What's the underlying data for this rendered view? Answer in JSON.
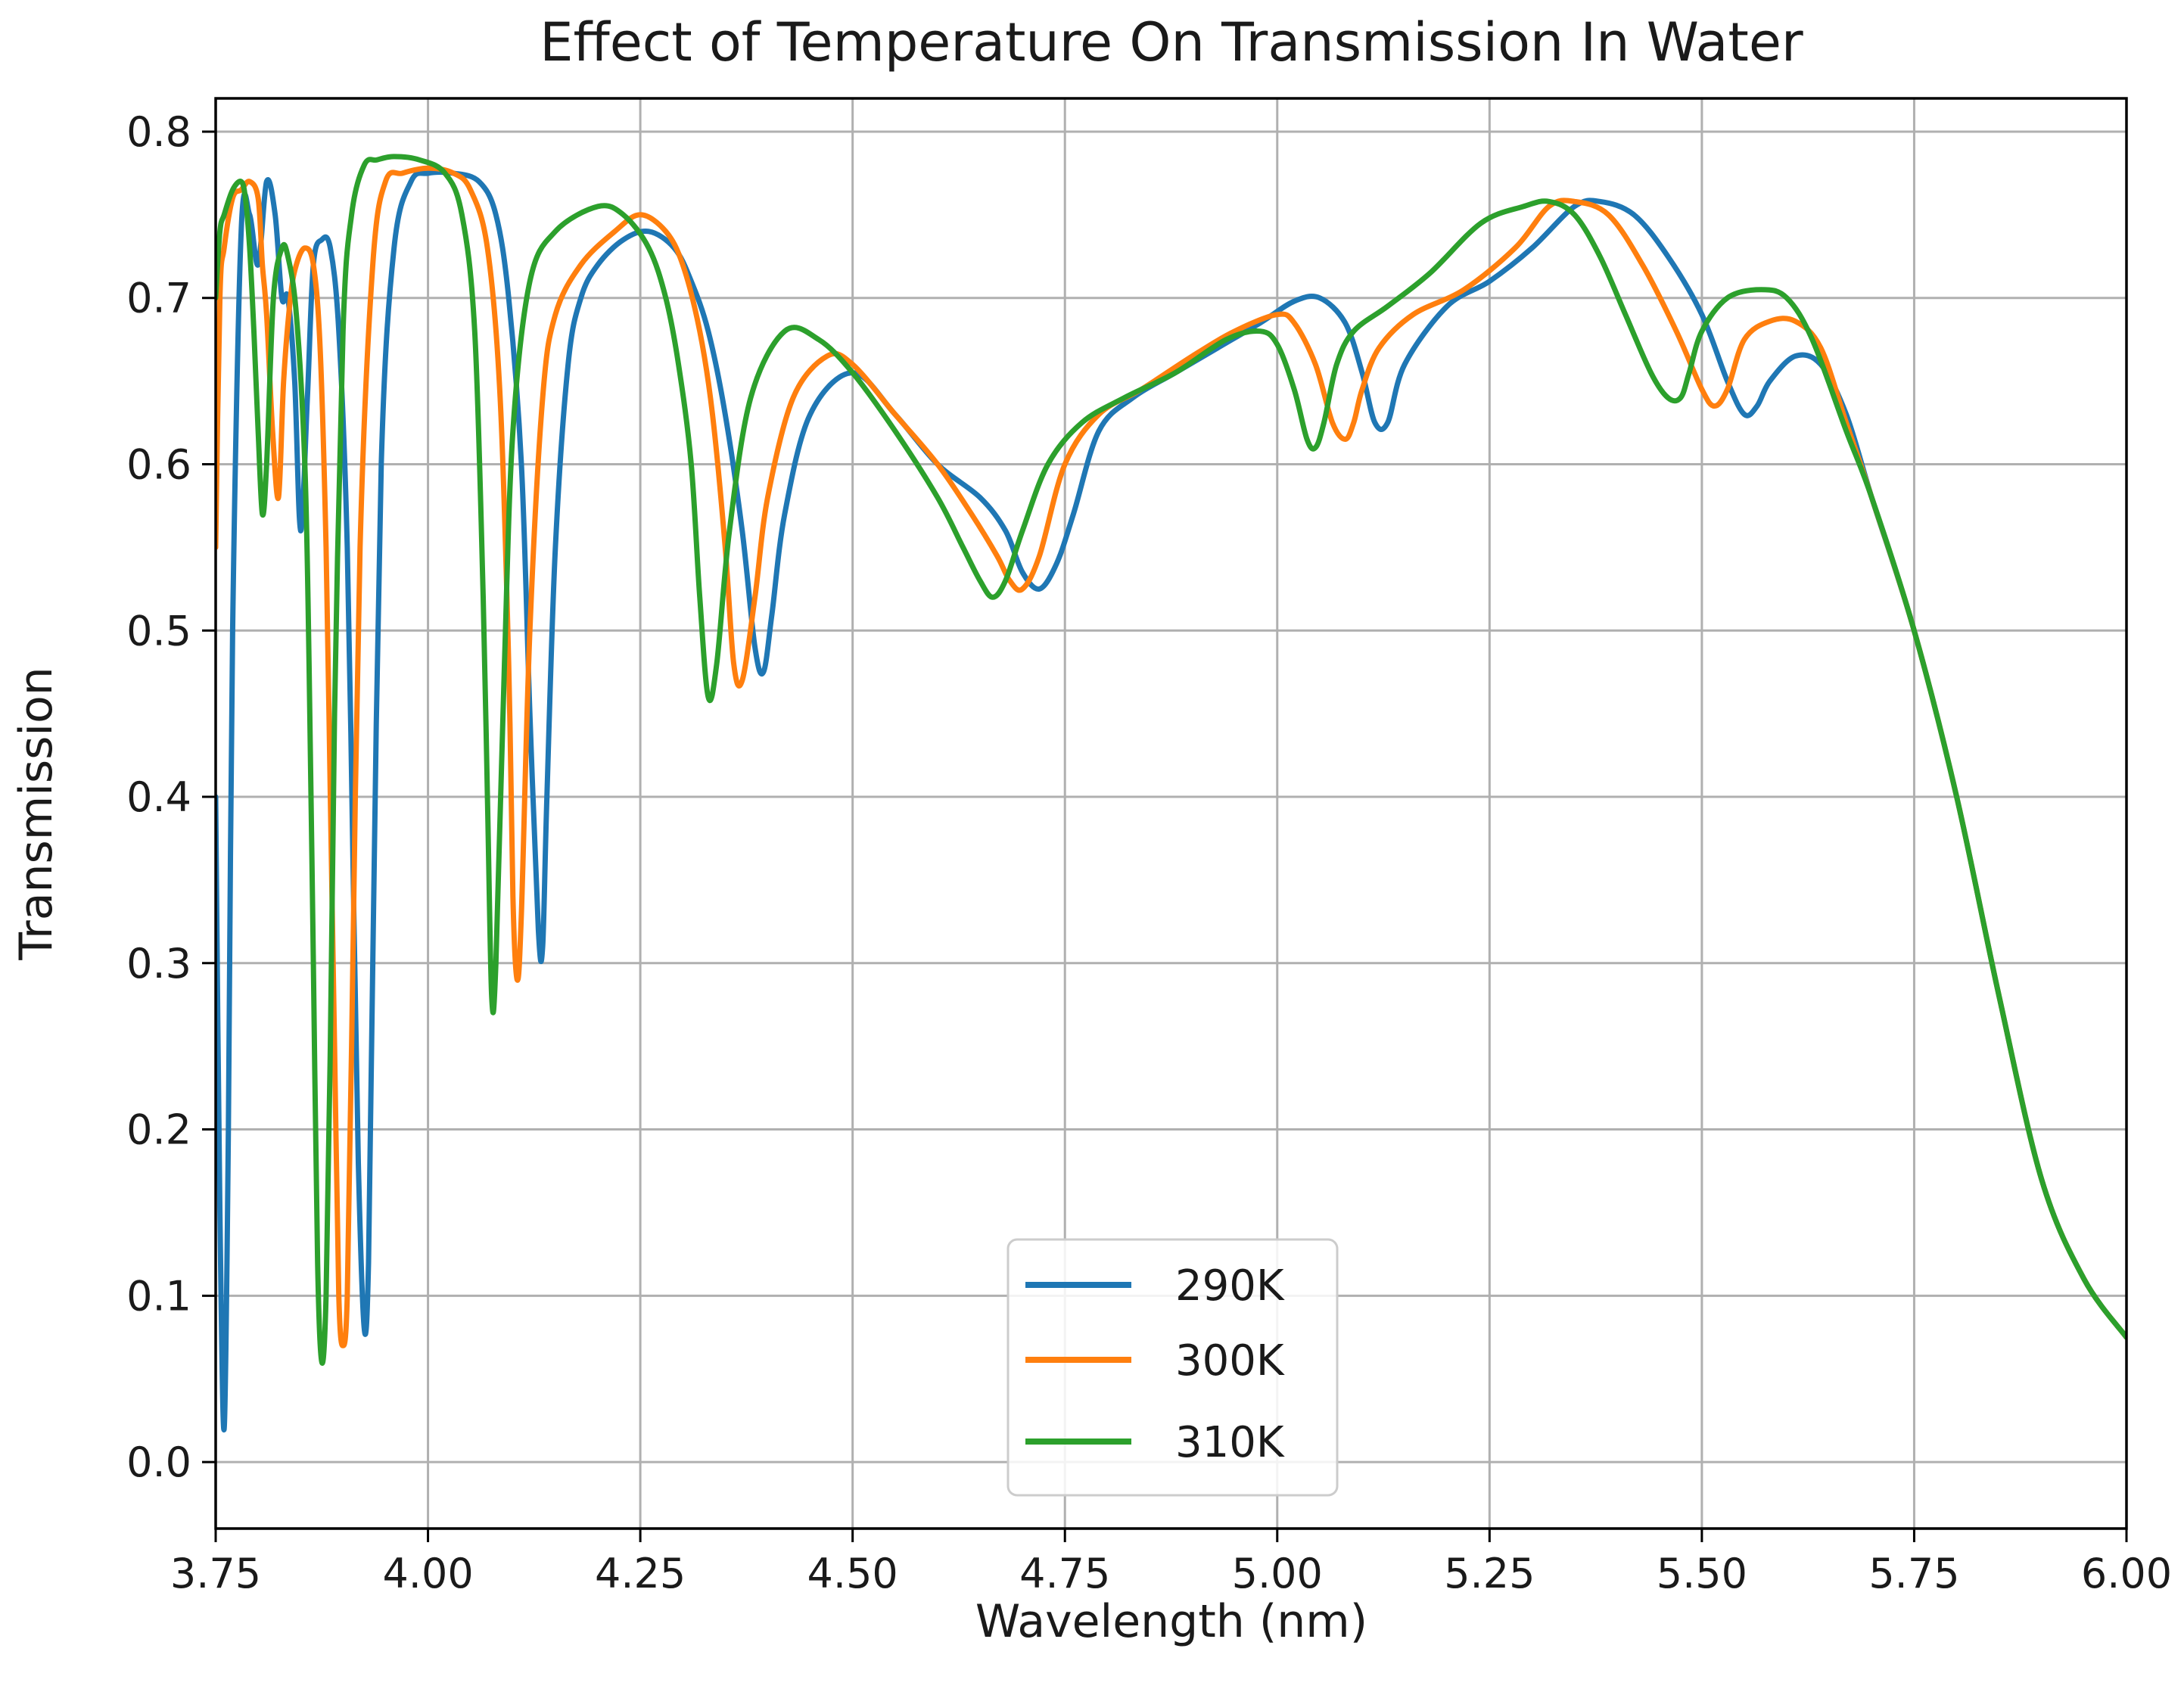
{
  "chart_data": {
    "type": "line",
    "title": "Effect of Temperature On Transmission In Water",
    "xlabel": "Wavelength (nm)",
    "ylabel": "Transmission",
    "xlim": [
      3.75,
      6.0
    ],
    "ylim": [
      -0.04,
      0.82
    ],
    "xticks": [
      3.75,
      4.0,
      4.25,
      4.5,
      4.75,
      5.0,
      5.25,
      5.5,
      5.75,
      6.0
    ],
    "xtick_labels": [
      "3.75",
      "4.00",
      "4.25",
      "4.50",
      "4.75",
      "5.00",
      "5.25",
      "5.50",
      "5.75",
      "6.00"
    ],
    "yticks": [
      0.0,
      0.1,
      0.2,
      0.3,
      0.4,
      0.5,
      0.6,
      0.7,
      0.8
    ],
    "ytick_labels": [
      "0.0",
      "0.1",
      "0.2",
      "0.3",
      "0.4",
      "0.5",
      "0.6",
      "0.7",
      "0.8"
    ],
    "grid": true,
    "legend_position": "bottom-center",
    "series": [
      {
        "name": "290K",
        "color": "#1f77b4",
        "x": [
          3.75,
          3.755,
          3.76,
          3.765,
          3.77,
          3.78,
          3.79,
          3.8,
          3.81,
          3.82,
          3.828,
          3.835,
          3.843,
          3.85,
          3.858,
          3.865,
          3.875,
          3.885,
          3.895,
          3.905,
          3.912,
          3.918,
          3.925,
          3.93,
          3.935,
          3.945,
          3.96,
          3.98,
          4.0,
          4.03,
          4.06,
          4.08,
          4.095,
          4.11,
          4.12,
          4.13,
          4.135,
          4.14,
          4.15,
          4.165,
          4.18,
          4.2,
          4.23,
          4.26,
          4.29,
          4.31,
          4.33,
          4.35,
          4.37,
          4.385,
          4.395,
          4.405,
          4.42,
          4.45,
          4.5,
          4.55,
          4.6,
          4.65,
          4.68,
          4.7,
          4.72,
          4.74,
          4.76,
          4.79,
          4.83,
          4.88,
          4.93,
          4.98,
          5.02,
          5.05,
          5.08,
          5.1,
          5.115,
          5.13,
          5.15,
          5.2,
          5.25,
          5.3,
          5.35,
          5.38,
          5.42,
          5.46,
          5.5,
          5.53,
          5.55,
          5.565,
          5.58,
          5.61,
          5.64,
          5.67,
          5.7,
          5.75,
          5.8,
          5.85,
          5.9,
          5.95,
          6.0
        ],
        "y": [
          0.4,
          0.15,
          0.02,
          0.2,
          0.5,
          0.74,
          0.75,
          0.72,
          0.77,
          0.75,
          0.7,
          0.7,
          0.65,
          0.56,
          0.64,
          0.72,
          0.735,
          0.73,
          0.68,
          0.55,
          0.35,
          0.18,
          0.08,
          0.12,
          0.3,
          0.6,
          0.73,
          0.77,
          0.775,
          0.775,
          0.77,
          0.75,
          0.7,
          0.6,
          0.45,
          0.32,
          0.31,
          0.4,
          0.55,
          0.66,
          0.7,
          0.72,
          0.735,
          0.74,
          0.73,
          0.71,
          0.68,
          0.63,
          0.56,
          0.49,
          0.475,
          0.51,
          0.57,
          0.63,
          0.655,
          0.63,
          0.6,
          0.58,
          0.56,
          0.535,
          0.525,
          0.54,
          0.57,
          0.62,
          0.64,
          0.655,
          0.67,
          0.685,
          0.698,
          0.7,
          0.685,
          0.655,
          0.625,
          0.625,
          0.66,
          0.695,
          0.71,
          0.73,
          0.755,
          0.758,
          0.75,
          0.725,
          0.69,
          0.65,
          0.63,
          0.635,
          0.65,
          0.665,
          0.66,
          0.63,
          0.58,
          0.5,
          0.4,
          0.28,
          0.17,
          0.11,
          0.075
        ]
      },
      {
        "name": "300K",
        "color": "#ff7f0e",
        "x": [
          3.75,
          3.755,
          3.76,
          3.77,
          3.78,
          3.79,
          3.8,
          3.805,
          3.81,
          3.817,
          3.824,
          3.83,
          3.838,
          3.845,
          3.855,
          3.865,
          3.873,
          3.88,
          3.885,
          3.89,
          3.895,
          3.9,
          3.905,
          3.91,
          3.92,
          3.935,
          3.95,
          3.97,
          4.0,
          4.03,
          4.05,
          4.07,
          4.085,
          4.095,
          4.1,
          4.105,
          4.11,
          4.12,
          4.135,
          4.15,
          4.18,
          4.22,
          4.25,
          4.28,
          4.3,
          4.32,
          4.335,
          4.35,
          4.36,
          4.37,
          4.385,
          4.4,
          4.43,
          4.47,
          4.5,
          4.55,
          4.6,
          4.64,
          4.67,
          4.685,
          4.7,
          4.72,
          4.75,
          4.79,
          4.84,
          4.9,
          4.95,
          5.0,
          5.02,
          5.045,
          5.065,
          5.08,
          5.09,
          5.1,
          5.12,
          5.16,
          5.22,
          5.28,
          5.32,
          5.35,
          5.39,
          5.43,
          5.47,
          5.5,
          5.515,
          5.53,
          5.55,
          5.58,
          5.61,
          5.64,
          5.67,
          5.7,
          5.75,
          5.8,
          5.85,
          5.9,
          5.95,
          6.0
        ],
        "y": [
          0.55,
          0.7,
          0.73,
          0.76,
          0.765,
          0.77,
          0.76,
          0.72,
          0.69,
          0.62,
          0.58,
          0.65,
          0.7,
          0.72,
          0.73,
          0.72,
          0.67,
          0.55,
          0.4,
          0.25,
          0.1,
          0.07,
          0.1,
          0.25,
          0.55,
          0.72,
          0.77,
          0.775,
          0.778,
          0.775,
          0.765,
          0.73,
          0.64,
          0.48,
          0.34,
          0.29,
          0.33,
          0.5,
          0.64,
          0.69,
          0.72,
          0.74,
          0.75,
          0.74,
          0.72,
          0.68,
          0.63,
          0.55,
          0.48,
          0.47,
          0.52,
          0.58,
          0.64,
          0.665,
          0.66,
          0.63,
          0.6,
          0.57,
          0.545,
          0.53,
          0.525,
          0.545,
          0.6,
          0.63,
          0.645,
          0.665,
          0.68,
          0.69,
          0.685,
          0.66,
          0.625,
          0.615,
          0.625,
          0.645,
          0.67,
          0.69,
          0.705,
          0.73,
          0.755,
          0.758,
          0.75,
          0.72,
          0.68,
          0.645,
          0.635,
          0.645,
          0.675,
          0.686,
          0.686,
          0.67,
          0.625,
          0.58,
          0.5,
          0.4,
          0.28,
          0.17,
          0.11,
          0.075
        ]
      },
      {
        "name": "310K",
        "color": "#2ca02c",
        "x": [
          3.75,
          3.755,
          3.76,
          3.77,
          3.78,
          3.785,
          3.79,
          3.795,
          3.8,
          3.805,
          3.81,
          3.818,
          3.828,
          3.835,
          3.845,
          3.855,
          3.86,
          3.865,
          3.87,
          3.875,
          3.88,
          3.885,
          3.89,
          3.9,
          3.91,
          3.925,
          3.94,
          3.96,
          3.99,
          4.02,
          4.04,
          4.055,
          4.065,
          4.07,
          4.075,
          4.08,
          4.09,
          4.1,
          4.12,
          4.15,
          4.2,
          4.23,
          4.26,
          4.28,
          4.295,
          4.31,
          4.32,
          4.33,
          4.34,
          4.355,
          4.38,
          4.42,
          4.46,
          4.5,
          4.55,
          4.6,
          4.63,
          4.65,
          4.665,
          4.68,
          4.7,
          4.73,
          4.77,
          4.82,
          4.88,
          4.94,
          4.98,
          5.0,
          5.02,
          5.035,
          5.045,
          5.055,
          5.07,
          5.09,
          5.13,
          5.18,
          5.24,
          5.29,
          5.32,
          5.35,
          5.38,
          5.41,
          5.44,
          5.46,
          5.475,
          5.485,
          5.5,
          5.53,
          5.57,
          5.6,
          5.63,
          5.67,
          5.7,
          5.75,
          5.8,
          5.85,
          5.9,
          5.95,
          6.0
        ],
        "y": [
          0.7,
          0.74,
          0.75,
          0.765,
          0.77,
          0.76,
          0.73,
          0.68,
          0.62,
          0.57,
          0.6,
          0.7,
          0.73,
          0.725,
          0.69,
          0.6,
          0.48,
          0.3,
          0.12,
          0.06,
          0.1,
          0.25,
          0.45,
          0.68,
          0.75,
          0.78,
          0.783,
          0.785,
          0.783,
          0.775,
          0.75,
          0.68,
          0.52,
          0.4,
          0.28,
          0.3,
          0.48,
          0.62,
          0.71,
          0.74,
          0.755,
          0.75,
          0.73,
          0.7,
          0.66,
          0.6,
          0.52,
          0.46,
          0.48,
          0.56,
          0.64,
          0.68,
          0.675,
          0.655,
          0.62,
          0.58,
          0.55,
          0.53,
          0.52,
          0.53,
          0.56,
          0.6,
          0.625,
          0.64,
          0.655,
          0.675,
          0.68,
          0.672,
          0.645,
          0.615,
          0.61,
          0.625,
          0.66,
          0.68,
          0.695,
          0.715,
          0.745,
          0.755,
          0.758,
          0.75,
          0.725,
          0.69,
          0.655,
          0.64,
          0.64,
          0.655,
          0.68,
          0.7,
          0.705,
          0.7,
          0.675,
          0.62,
          0.58,
          0.5,
          0.4,
          0.28,
          0.17,
          0.11,
          0.075
        ]
      }
    ]
  }
}
